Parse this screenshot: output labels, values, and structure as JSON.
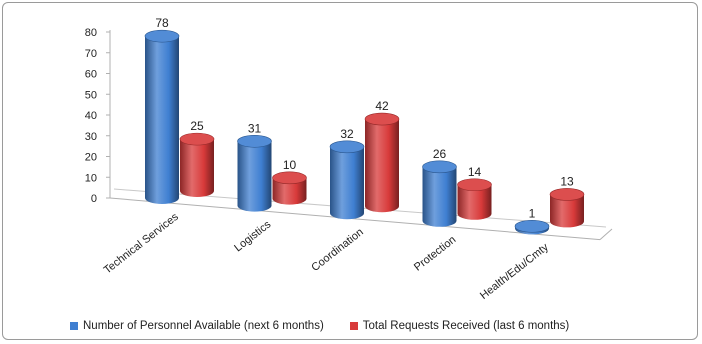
{
  "chart_data": {
    "type": "bar",
    "style": "3d-cylinder",
    "categories": [
      "Technical Services",
      "Logistics",
      "Coordination",
      "Protection",
      "Health/Edu/Cmty"
    ],
    "series": [
      {
        "name": "Number of Personnel Available (next 6 months)",
        "color": "#3f7fd1",
        "values": [
          78,
          31,
          32,
          26,
          1
        ]
      },
      {
        "name": "Total Requests Received (last 6 months)",
        "color": "#d83a3a",
        "values": [
          25,
          10,
          42,
          14,
          13
        ]
      }
    ],
    "yticks": [
      "0",
      "10",
      "20",
      "30",
      "40",
      "50",
      "60",
      "70",
      "80"
    ],
    "ylim": [
      0,
      80
    ],
    "legend_position": "bottom",
    "grid": false
  }
}
